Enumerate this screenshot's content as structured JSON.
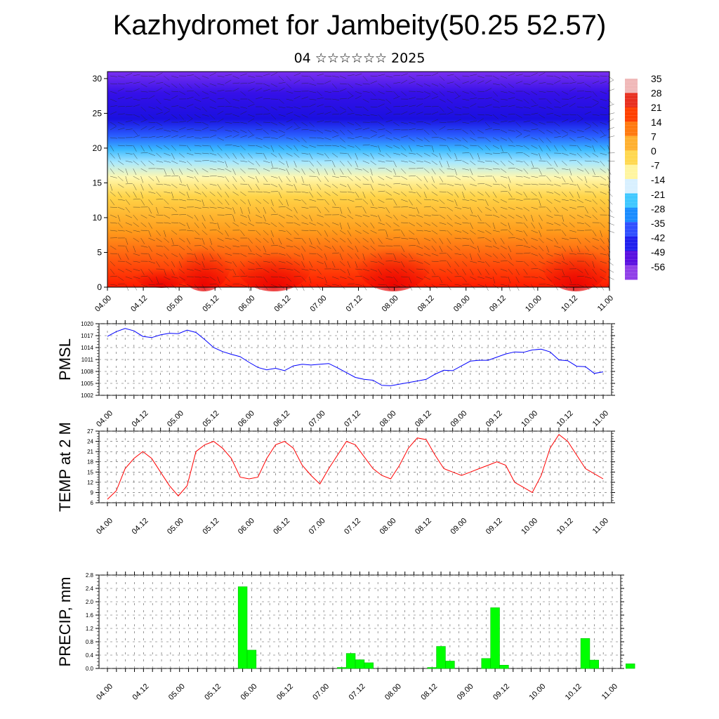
{
  "title": "Kazhydromet for Jambeity(50.25 52.57)",
  "subtitle": "04 ☆☆☆☆☆☆ 2025",
  "time_labels": [
    "04.00",
    "04.12",
    "05.00",
    "05.12",
    "06.00",
    "06.12",
    "07.00",
    "07.12",
    "08.00",
    "08.12",
    "09.00",
    "09.12",
    "10.00",
    "10.12",
    "11.00"
  ],
  "chart_data": [
    {
      "type": "heatmap",
      "description_variable": "temperature cross-section with wind barbs",
      "yticks": [
        "0",
        "5",
        "10",
        "15",
        "20",
        "25",
        "30"
      ],
      "ylim": [
        0,
        31
      ],
      "colorbar": {
        "labels": [
          "35",
          "28",
          "21",
          "14",
          "7",
          "0",
          "-7",
          "-14",
          "-21",
          "-28",
          "-35",
          "-42",
          "-49",
          "-56"
        ],
        "colors": [
          "#f0b8b8",
          "#e83020",
          "#ff4000",
          "#ff7a10",
          "#ffb030",
          "#ffd850",
          "#fff5a0",
          "#d8f0ff",
          "#40c8ff",
          "#1a8cff",
          "#3050ff",
          "#2020ee",
          "#5a10e0",
          "#9040e8"
        ]
      }
    },
    {
      "type": "line",
      "ylabel": "PMSL",
      "yticks": [
        "1020",
        "1017",
        "1014",
        "1011",
        "1008",
        "1005",
        "1002"
      ],
      "ylim": [
        1002,
        1020
      ],
      "color": "#0000ff",
      "values": [
        1016.8,
        1018.0,
        1018.8,
        1018.2,
        1016.8,
        1016.5,
        1017.2,
        1017.6,
        1017.5,
        1018.4,
        1017.8,
        1016.0,
        1014.0,
        1013.0,
        1012.3,
        1011.7,
        1010.3,
        1009.0,
        1008.4,
        1008.8,
        1008.2,
        1009.4,
        1009.8,
        1009.6,
        1009.8,
        1010.0,
        1008.9,
        1007.7,
        1006.5,
        1006.0,
        1005.8,
        1004.5,
        1004.4,
        1004.8,
        1005.2,
        1005.6,
        1006.0,
        1007.3,
        1008.3,
        1008.2,
        1009.4,
        1010.6,
        1010.8,
        1010.8,
        1011.6,
        1012.4,
        1012.9,
        1012.8,
        1013.4,
        1013.6,
        1012.9,
        1010.9,
        1010.7,
        1009.3,
        1009.2,
        1007.5,
        1007.9
      ]
    },
    {
      "type": "line",
      "ylabel": "TEMP at 2 M",
      "yticks": [
        "27",
        "24",
        "21",
        "18",
        "15",
        "12",
        "9",
        "6"
      ],
      "ylim": [
        6,
        27
      ],
      "color": "#ff0000",
      "values": [
        7.0,
        9.5,
        16.0,
        19.0,
        21.0,
        19.0,
        15.0,
        11.0,
        8.0,
        11.0,
        21.0,
        23.0,
        24.0,
        22.0,
        19.0,
        13.5,
        13.0,
        13.5,
        19.0,
        23.0,
        24.0,
        22.0,
        17.0,
        14.0,
        11.5,
        16.0,
        20.0,
        24.0,
        23.0,
        19.5,
        16.0,
        14.0,
        13.0,
        17.0,
        22.0,
        25.0,
        24.5,
        20.0,
        16.0,
        15.0,
        14.0,
        15.0,
        16.0,
        17.0,
        18.0,
        17.0,
        12.0,
        10.5,
        9.0,
        14.0,
        22.0,
        26.0,
        24.0,
        20.0,
        16.0,
        14.5,
        13.0
      ]
    },
    {
      "type": "bar",
      "ylabel": "PRECIP, mm",
      "yticks": [
        "2.8",
        "2.4",
        "2.0",
        "1.6",
        "1.2",
        "0.8",
        "0.4",
        "0.0"
      ],
      "ylim": [
        0,
        2.8
      ],
      "color": "#00ff00",
      "bars": [
        {
          "step": 15,
          "value": 2.45
        },
        {
          "step": 16,
          "value": 0.55
        },
        {
          "step": 26,
          "value": 0.03
        },
        {
          "step": 27,
          "value": 0.45
        },
        {
          "step": 28,
          "value": 0.26
        },
        {
          "step": 29,
          "value": 0.17
        },
        {
          "step": 36,
          "value": 0.03
        },
        {
          "step": 37,
          "value": 0.66
        },
        {
          "step": 38,
          "value": 0.22
        },
        {
          "step": 42,
          "value": 0.3
        },
        {
          "step": 43,
          "value": 1.82
        },
        {
          "step": 44,
          "value": 0.1
        },
        {
          "step": 53,
          "value": 0.9
        },
        {
          "step": 54,
          "value": 0.25
        },
        {
          "step": 58,
          "value": 0.14
        }
      ]
    }
  ]
}
